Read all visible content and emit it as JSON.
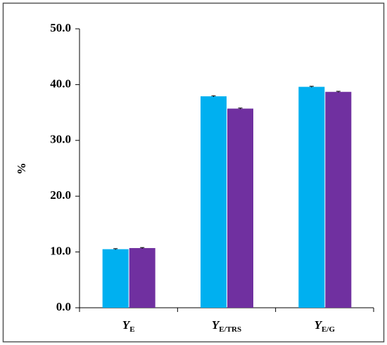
{
  "chart_data": {
    "type": "bar",
    "ylabel": "%",
    "categories": [
      {
        "label": "Y",
        "subscript": "E"
      },
      {
        "label": "Y",
        "subscript": "E/TRS"
      },
      {
        "label": "Y",
        "subscript": "E/G"
      }
    ],
    "series": [
      {
        "color": "#00b0f0",
        "values": [
          10.5,
          37.9,
          39.6
        ],
        "errors": [
          0.1,
          0.1,
          0.1
        ]
      },
      {
        "color": "#7030a0",
        "values": [
          10.7,
          35.7,
          38.7
        ],
        "errors": [
          0.1,
          0.1,
          0.1
        ]
      }
    ],
    "ylim": [
      0,
      50
    ],
    "yticks": [
      {
        "value": 0,
        "label": "0.0"
      },
      {
        "value": 10,
        "label": "10.0"
      },
      {
        "value": 20,
        "label": "20.0"
      },
      {
        "value": 30,
        "label": "30.0"
      },
      {
        "value": 40,
        "label": "40.0"
      },
      {
        "value": 50,
        "label": "50.0"
      }
    ],
    "grid": false
  }
}
